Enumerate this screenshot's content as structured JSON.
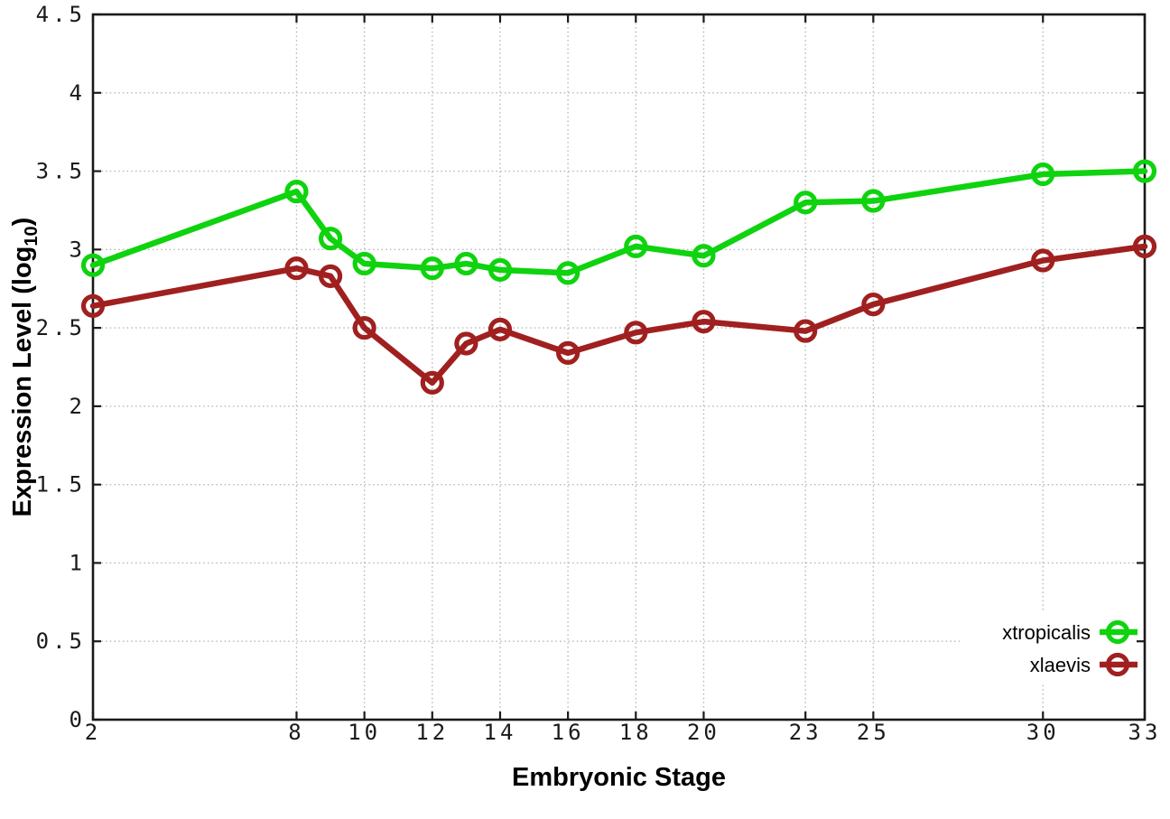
{
  "figure": {
    "background": "#ffffff",
    "axis_color": "#1a1a1a",
    "grid_color": "#b6b6b6",
    "text_color": "#000000"
  },
  "chart_data": {
    "type": "line",
    "title": "",
    "xlabel": "Embryonic Stage",
    "ylabel": "Expression Level (log10)",
    "ylabel_parts": {
      "main": "Expression Level (log",
      "sub": "10",
      "tail": ")"
    },
    "xlim": [
      2,
      33
    ],
    "ylim": [
      0,
      4.5
    ],
    "grid": true,
    "legend_position": "inside-bottom-right",
    "x": [
      2,
      8,
      9,
      10,
      12,
      13,
      14,
      16,
      18,
      20,
      23,
      25,
      30,
      33
    ],
    "xtick_values": [
      2,
      8,
      10,
      12,
      14,
      16,
      18,
      20,
      23,
      25,
      30,
      33
    ],
    "xtick_labels": [
      "2",
      "8",
      "10",
      "12",
      "14",
      "16",
      "18",
      "20",
      "23",
      "25",
      "30",
      "33"
    ],
    "ytick_values": [
      0,
      0.5,
      1,
      1.5,
      2,
      2.5,
      3,
      3.5,
      4,
      4.5
    ],
    "ytick_labels": [
      "0",
      "0.5",
      "1",
      "1.5",
      "2",
      "2.5",
      "3",
      "3.5",
      "4",
      "4.5"
    ],
    "series": [
      {
        "name": "xtropicalis",
        "color": "#0ed30e",
        "marker": "open-circle",
        "values": [
          2.9,
          3.37,
          3.07,
          2.91,
          2.88,
          2.91,
          2.87,
          2.85,
          3.02,
          2.96,
          3.3,
          3.31,
          3.48,
          3.5
        ]
      },
      {
        "name": "xlaevis",
        "color": "#a02020",
        "marker": "open-circle",
        "values": [
          2.64,
          2.88,
          2.83,
          2.5,
          2.15,
          2.4,
          2.49,
          2.34,
          2.47,
          2.54,
          2.48,
          2.65,
          2.93,
          3.02
        ]
      }
    ]
  }
}
